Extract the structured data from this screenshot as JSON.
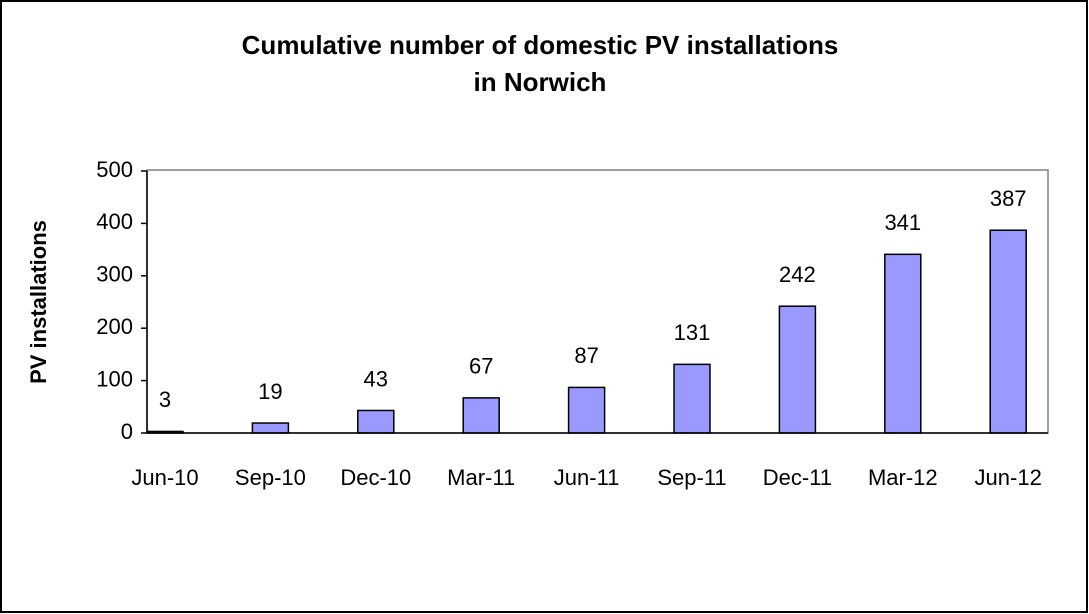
{
  "chart_data": {
    "type": "bar",
    "title": [
      "Cumulative number of domestic PV installations",
      "in Norwich"
    ],
    "y_label": "PV installations",
    "categories": [
      "Jun-10",
      "Sep-10",
      "Dec-10",
      "Mar-11",
      "Jun-11",
      "Sep-11",
      "Dec-11",
      "Mar-12",
      "Jun-12"
    ],
    "values": [
      3,
      19,
      43,
      67,
      87,
      131,
      242,
      341,
      387
    ],
    "color": "#9999ff",
    "ylim": [
      0,
      500
    ],
    "yticks": [
      0,
      100,
      200,
      300,
      400,
      500
    ],
    "grid": false
  }
}
